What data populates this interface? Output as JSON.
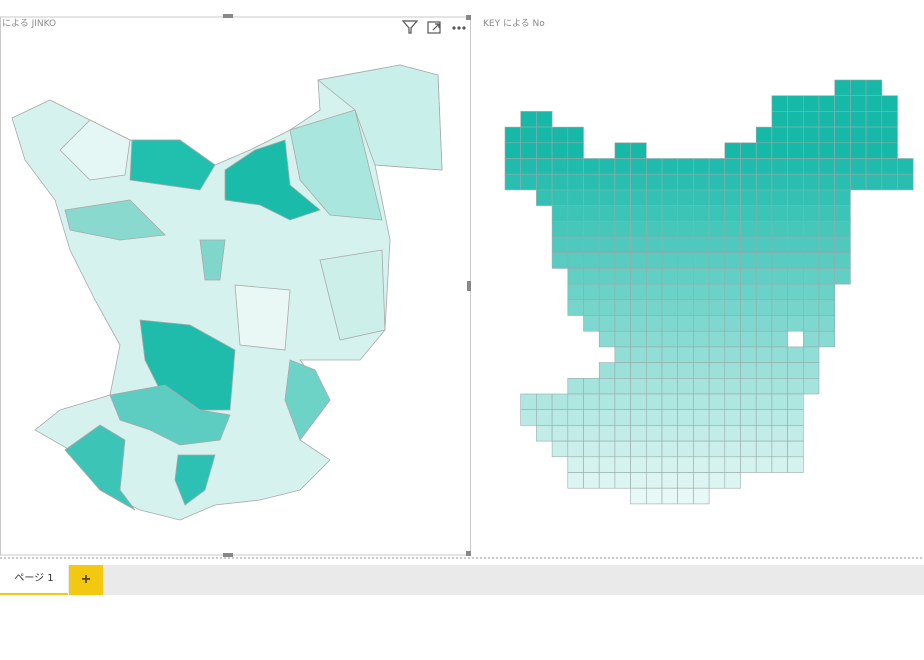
{
  "visuals": [
    {
      "title": "による JINKO"
    },
    {
      "title": "KEY による No"
    }
  ],
  "tabs": [
    {
      "label": "ページ 1"
    }
  ],
  "add_button": "+"
}
